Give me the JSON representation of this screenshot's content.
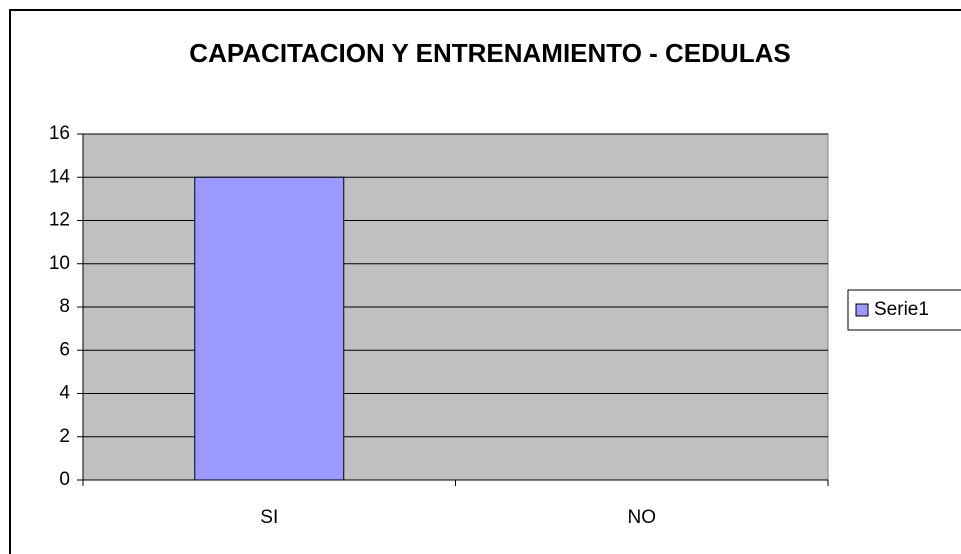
{
  "chart_data": {
    "type": "bar",
    "title": "CAPACITACION Y ENTRENAMIENTO - CEDULAS",
    "categories": [
      "SI",
      "NO"
    ],
    "series": [
      {
        "name": "Serie1",
        "color": "#9999ff",
        "values": [
          14,
          0
        ]
      }
    ],
    "ylim": [
      0,
      16
    ],
    "yticks": [
      0,
      2,
      4,
      6,
      8,
      10,
      12,
      14,
      16
    ],
    "grid": true,
    "legend": "right",
    "plot_background": "#c0c0c0"
  }
}
